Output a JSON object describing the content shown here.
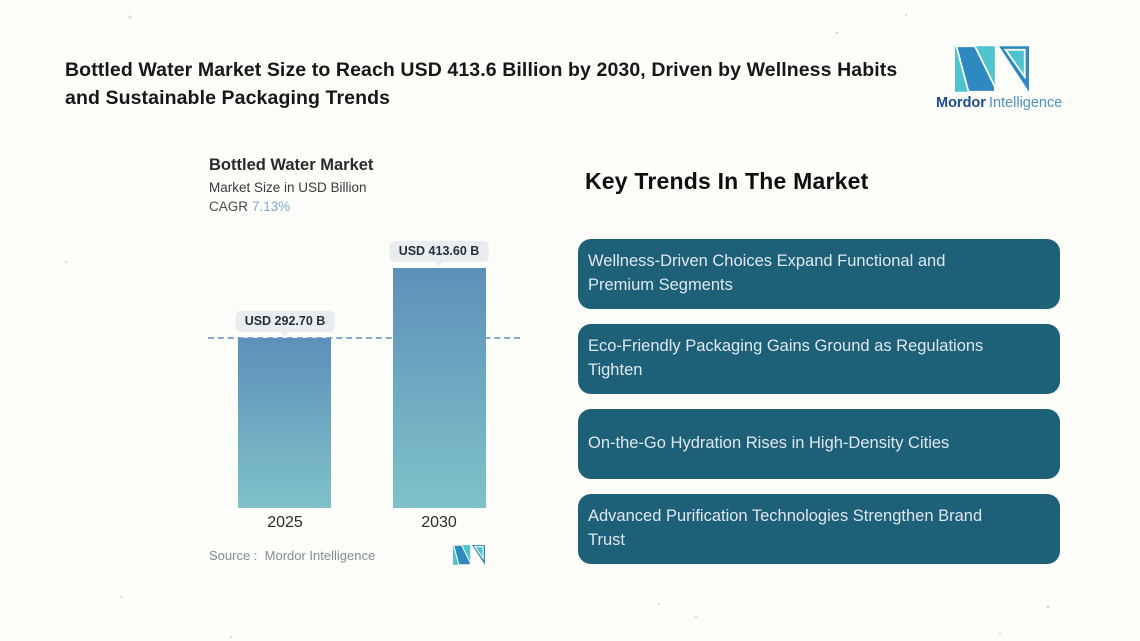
{
  "header": {
    "title": "Bottled Water Market Size to Reach USD 413.6 Billion by 2030, Driven by Wellness Habits and Sustainable Packaging Trends"
  },
  "brand": {
    "name_bold": "Mordor",
    "name_light": "Intelligence"
  },
  "chart": {
    "title": "Bottled Water Market",
    "subtitle": "Market Size in USD Billion",
    "cagr_label": "CAGR",
    "cagr_value": "7.13%",
    "source_label": "Source :  Mordor Intelligence"
  },
  "chart_data": {
    "type": "bar",
    "title": "Bottled Water Market",
    "subtitle": "Market Size in USD Billion",
    "cagr": "7.13%",
    "categories": [
      "2025",
      "2030"
    ],
    "values": [
      292.7,
      413.6
    ],
    "labels": [
      "USD 292.70 B",
      "USD 413.60 B"
    ],
    "ylabel": "USD Billion",
    "ylim": [
      0,
      462
    ],
    "reference_line": 292.7,
    "grid": false,
    "legend": "none",
    "source": "Mordor Intelligence"
  },
  "trends": {
    "heading": "Key Trends In The Market",
    "items": [
      "Wellness-Driven Choices Expand Functional and Premium Segments",
      "Eco-Friendly Packaging Gains Ground as Regulations Tighten",
      "On-the-Go Hydration Rises in High-Density Cities",
      "Advanced Purification Technologies Strengthen Brand Trust"
    ]
  },
  "colors": {
    "card_bg": "#1f6079",
    "card_text": "#dde8ed",
    "bar_gradient_top": "#5d90ba",
    "bar_gradient_bottom": "#7fc2c8",
    "dashed_line": "#86abd3",
    "cagr_accent": "#7fa9d6",
    "value_badge_bg": "#e9edef",
    "brand_teal": "#4fc4cf",
    "brand_blue": "#2d89c0",
    "brand_navy": "#1a4b8e",
    "brand_light_blue": "#4b92ca"
  }
}
